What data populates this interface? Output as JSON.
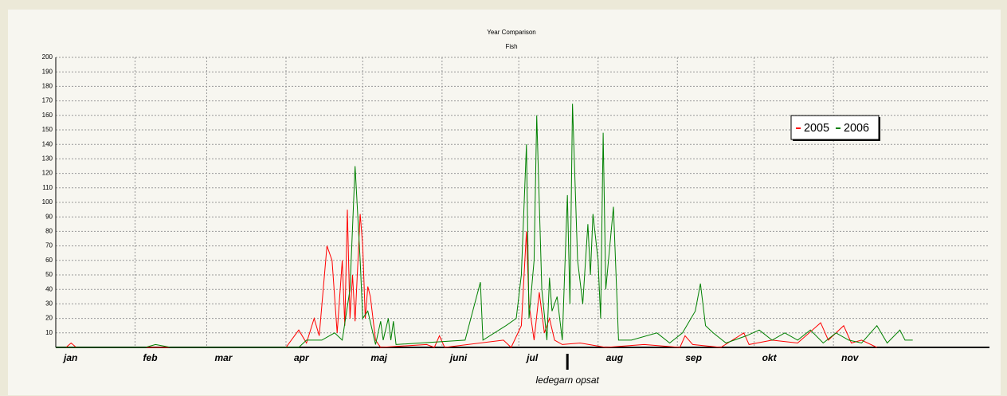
{
  "chart_data": {
    "type": "line",
    "title": "Year Comparison",
    "subtitle": "Fish",
    "xlim": [
      0,
      365
    ],
    "ylim": [
      0,
      200
    ],
    "xticks": [
      {
        "value": 0,
        "label": "jan"
      },
      {
        "value": 31,
        "label": "feb"
      },
      {
        "value": 59,
        "label": "mar"
      },
      {
        "value": 90,
        "label": "apr"
      },
      {
        "value": 120,
        "label": "maj"
      },
      {
        "value": 151,
        "label": "juni"
      },
      {
        "value": 181,
        "label": "jul"
      },
      {
        "value": 212,
        "label": "aug"
      },
      {
        "value": 243,
        "label": "sep"
      },
      {
        "value": 273,
        "label": "okt"
      },
      {
        "value": 304,
        "label": "nov"
      }
    ],
    "yticks": [
      10,
      20,
      30,
      40,
      50,
      60,
      70,
      80,
      90,
      100,
      110,
      120,
      130,
      140,
      150,
      160,
      170,
      180,
      190,
      200
    ],
    "grid": true,
    "legend": "upper right",
    "annotation": {
      "text": "ledegarn opsat",
      "x": 200
    },
    "series": [
      {
        "name": "2005",
        "color": "#ff0000",
        "x": [
          0,
          4,
          6,
          8,
          90,
          95,
          98,
          101,
          103,
          106,
          108,
          110,
          112,
          113,
          114,
          115,
          116,
          117,
          119,
          120,
          121,
          122,
          123,
          125,
          127,
          145,
          148,
          150,
          152,
          175,
          178,
          182,
          184,
          185,
          187,
          189,
          191,
          193,
          195,
          198,
          205,
          215,
          230,
          244,
          246,
          249,
          260,
          269,
          271,
          280,
          290,
          299,
          302,
          308,
          311,
          315,
          321
        ],
        "values": [
          0,
          0,
          3,
          0,
          0,
          12,
          3,
          20,
          8,
          70,
          60,
          10,
          60,
          15,
          95,
          20,
          50,
          18,
          92,
          70,
          20,
          42,
          35,
          5,
          0,
          2,
          0,
          8,
          0,
          5,
          0,
          15,
          80,
          30,
          5,
          38,
          10,
          20,
          5,
          2,
          3,
          0,
          2,
          0,
          8,
          2,
          0,
          10,
          2,
          5,
          3,
          17,
          5,
          15,
          3,
          5,
          0
        ]
      },
      {
        "name": "2006",
        "color": "#008000",
        "x": [
          0,
          35,
          39,
          45,
          95,
          98,
          104,
          109,
          112,
          115,
          117,
          119,
          120,
          122,
          125,
          127,
          128,
          130,
          131,
          132,
          133,
          160,
          166,
          167,
          176,
          180,
          182,
          184,
          185,
          187,
          188,
          190,
          192,
          193,
          194,
          196,
          198,
          200,
          201,
          202,
          204,
          206,
          208,
          209,
          210,
          212,
          213,
          214,
          215,
          218,
          220,
          225,
          235,
          240,
          245,
          250,
          252,
          254,
          257,
          262,
          270,
          275,
          280,
          285,
          290,
          295,
          300,
          305,
          310,
          315,
          321,
          325,
          330,
          332,
          335
        ],
        "values": [
          0,
          0,
          2,
          0,
          0,
          5,
          5,
          10,
          5,
          40,
          125,
          60,
          20,
          25,
          2,
          18,
          5,
          20,
          5,
          18,
          2,
          5,
          45,
          5,
          15,
          20,
          50,
          140,
          20,
          60,
          160,
          40,
          5,
          48,
          25,
          35,
          5,
          105,
          30,
          168,
          60,
          30,
          85,
          50,
          92,
          60,
          20,
          148,
          40,
          97,
          5,
          5,
          10,
          3,
          10,
          25,
          44,
          15,
          10,
          3,
          8,
          12,
          5,
          10,
          5,
          12,
          3,
          10,
          5,
          3,
          15,
          3,
          12,
          5,
          5
        ]
      }
    ]
  }
}
